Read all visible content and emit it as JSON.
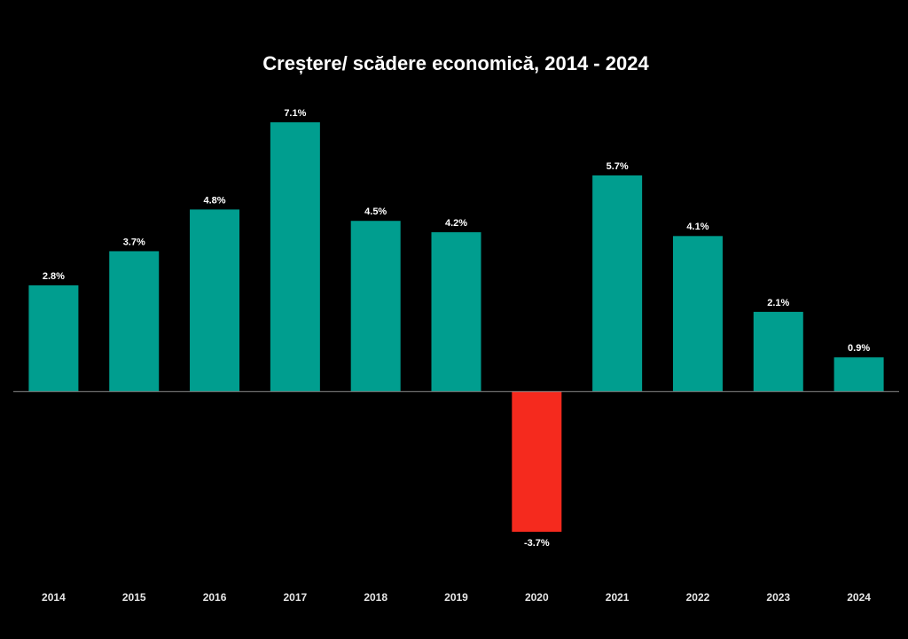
{
  "chart_data": {
    "type": "bar",
    "title": "Creștere/ scădere economică, 2014 - 2024",
    "categories": [
      "2014",
      "2015",
      "2016",
      "2017",
      "2018",
      "2019",
      "2020",
      "2021",
      "2022",
      "2023",
      "2024"
    ],
    "values": [
      2.8,
      3.7,
      4.8,
      7.1,
      4.5,
      4.2,
      -3.7,
      5.7,
      4.1,
      2.1,
      0.9
    ],
    "value_labels": [
      "2.8%",
      "3.7%",
      "4.8%",
      "7.1%",
      "4.5%",
      "4.2%",
      "-3.7%",
      "5.7%",
      "4.1%",
      "2.1%",
      "0.9%"
    ],
    "color": "#009e8f",
    "negative_color": "#f52a1e"
  }
}
